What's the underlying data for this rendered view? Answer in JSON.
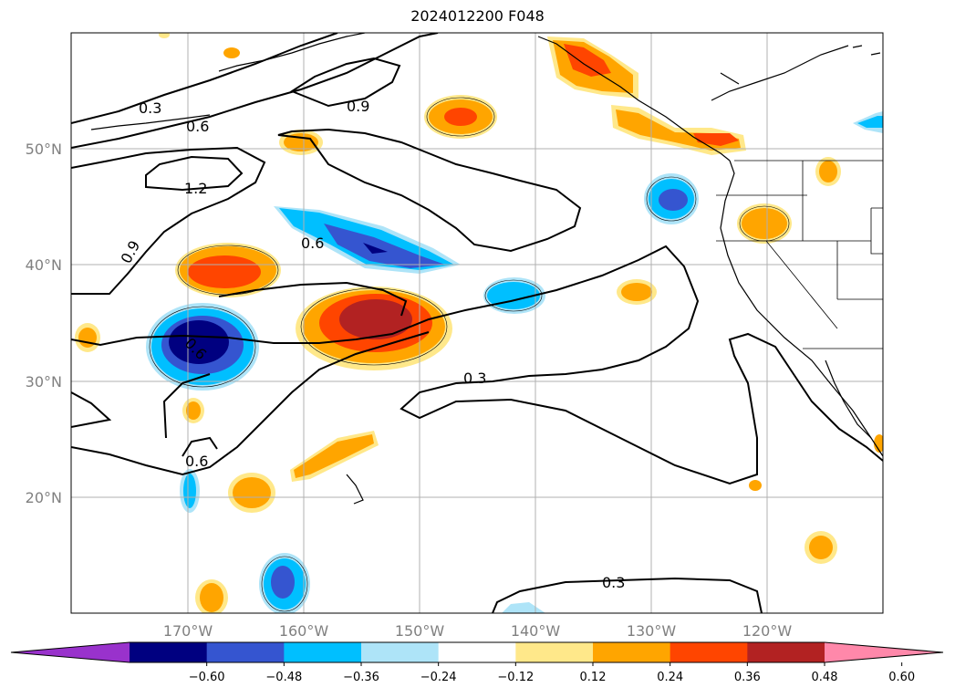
{
  "title": "2024012200 F048",
  "map": {
    "projection": "lat-lon",
    "lon_range": [
      -180,
      -110
    ],
    "lat_range": [
      10,
      60
    ],
    "grid": true,
    "lat_labels": [
      "50°N",
      "40°N",
      "30°N",
      "20°N"
    ],
    "lon_labels": [
      "170°W",
      "160°W",
      "150°W",
      "140°W",
      "130°W",
      "120°W"
    ],
    "contour_labels": [
      "0.3",
      "0.6",
      "0.9",
      "1.2",
      "0.6",
      "0.9",
      "0.6",
      "0.6",
      "0.3",
      "0.3"
    ]
  },
  "colorbar": {
    "tick_labels": [
      "−0.60",
      "−0.48",
      "−0.36",
      "−0.24",
      "−0.12",
      "0.12",
      "0.24",
      "0.36",
      "0.48",
      "0.60"
    ],
    "colors": [
      "#9932cc",
      "#000080",
      "#3555d0",
      "#00bfff",
      "#aee4f8",
      "#ffffff",
      "#ffe88a",
      "#ffa500",
      "#ff4500",
      "#b22222",
      "#ff88aa"
    ]
  },
  "colors": {
    "contour": "#000000",
    "grid": "#b0b0b0",
    "frame": "#000000"
  }
}
